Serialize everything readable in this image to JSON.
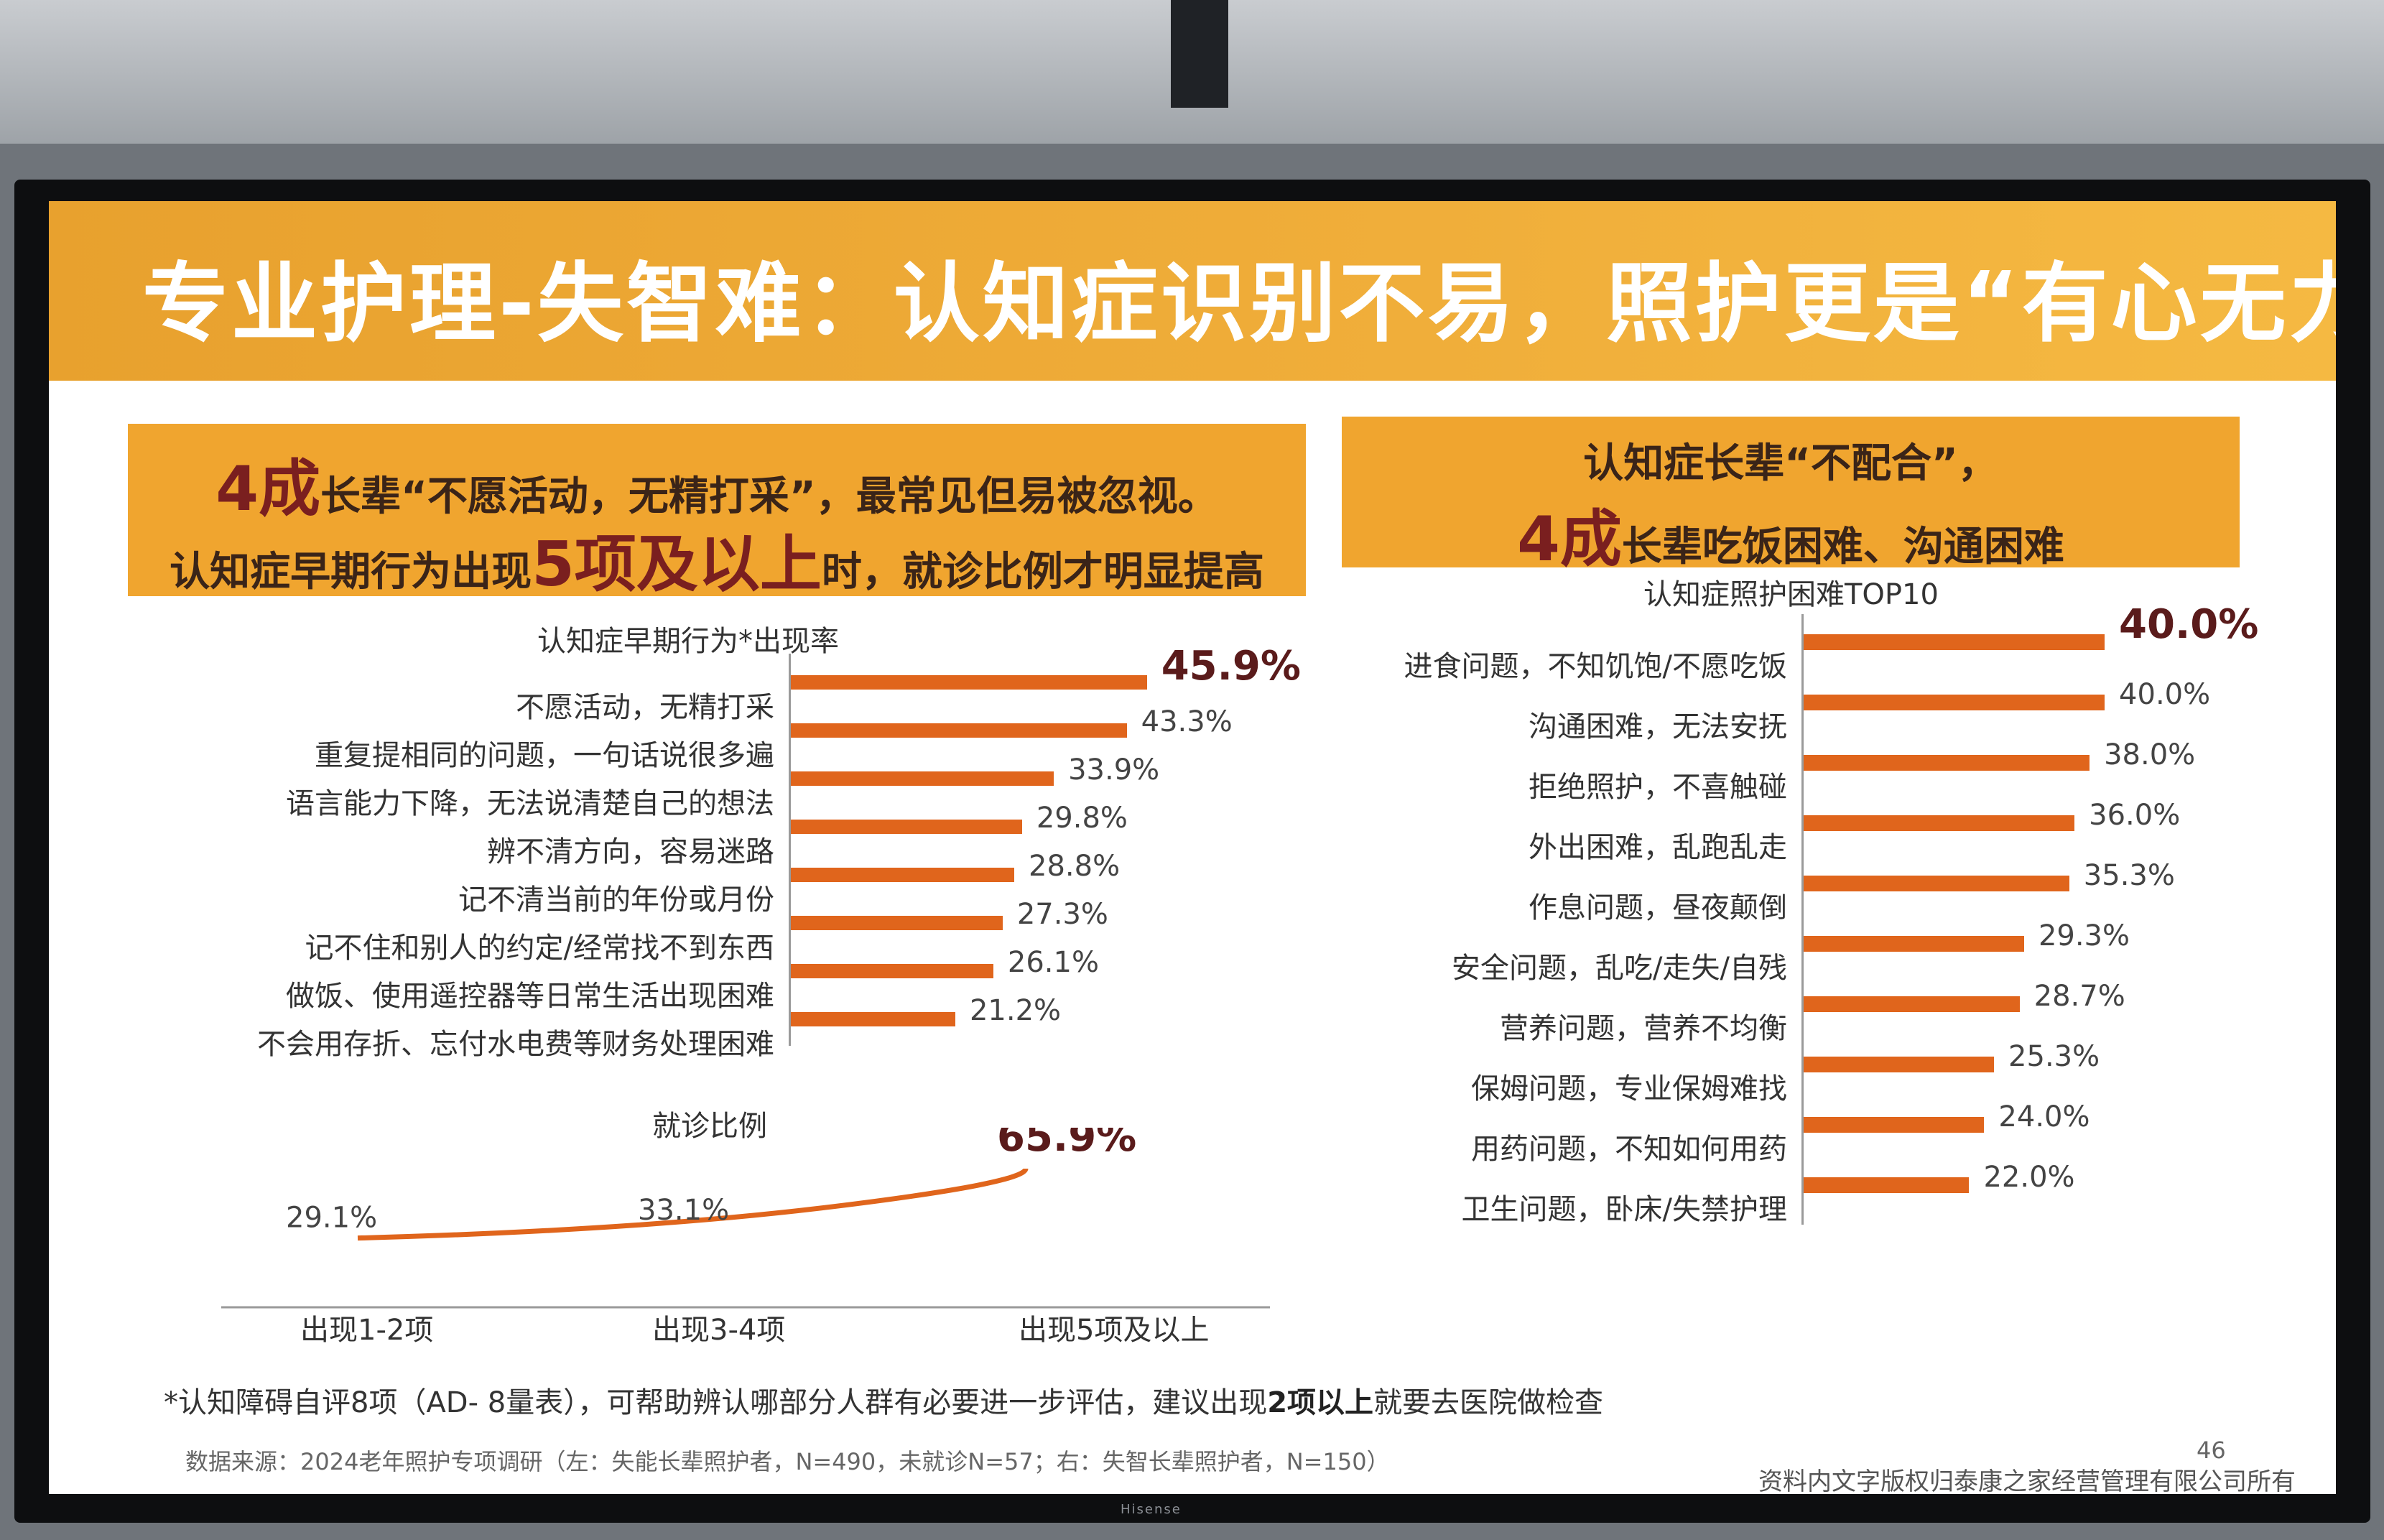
{
  "slide": {
    "title": "专业护理-失智难：认知症识别不易，照护更是“有心无力”",
    "page_number": "46",
    "copyright": "资料内文字版权归泰康之家经营管理有限公司所有",
    "source": "数据来源：2024老年照护专项调研（左：失能长辈照护者，N=490，未就诊N=57；右：失智长辈照护者，N=150）",
    "footnote_prefix": "*认知障碍自评8项（AD- 8量表），可帮助辨认哪部分人群有必要进一步评估，建议出现",
    "footnote_bold": "2项以上",
    "footnote_suffix": "就要去医院做检查",
    "tv_brand": "Hisense"
  },
  "left_banner": {
    "line1_big": "4成",
    "line1_text": "长辈“不愿活动，无精打采”，最常见但易被忽视。",
    "line2_pre": "认知症早期行为出现",
    "line2_big": "5项及以上",
    "line2_post": "时，就诊比例才明显提高"
  },
  "right_banner": {
    "line1": "认知症长辈“不配合”，",
    "line2_big": "4成",
    "line2_text": "长辈吃饭困难、沟通困难"
  },
  "chart_data": [
    {
      "type": "bar",
      "orientation": "horizontal",
      "title": "认知症早期行为*出现率",
      "categories": [
        "不愿活动，无精打采",
        "重复提相同的问题，一句话说很多遍",
        "语言能力下降，无法说清楚自己的想法",
        "辨不清方向，容易迷路",
        "记不清当前的年份或月份",
        "记不住和别人的约定/经常找不到东西",
        "做饭、使用遥控器等日常生活出现困难",
        "不会用存折、忘付水电费等财务处理困难"
      ],
      "values": [
        45.9,
        43.3,
        33.9,
        29.8,
        28.8,
        27.3,
        26.1,
        21.2
      ],
      "value_labels": [
        "45.9%",
        "43.3%",
        "33.9%",
        "29.8%",
        "28.8%",
        "27.3%",
        "26.1%",
        "21.2%"
      ],
      "unit": "%",
      "color": "#e0651c"
    },
    {
      "type": "line",
      "title": "就诊比例",
      "categories": [
        "出现1-2项",
        "出现3-4项",
        "出现5项及以上"
      ],
      "values": [
        29.1,
        33.1,
        65.9
      ],
      "value_labels": [
        "29.1%",
        "33.1%",
        "65.9%"
      ],
      "unit": "%",
      "color": "#e0651c"
    },
    {
      "type": "bar",
      "orientation": "horizontal",
      "title": "认知症照护困难TOP10",
      "categories": [
        "进食问题，不知饥饱/不愿吃饭",
        "沟通困难，无法安抚",
        "拒绝照护，不喜触碰",
        "外出困难，乱跑乱走",
        "作息问题，昼夜颠倒",
        "安全问题，乱吃/走失/自残",
        "营养问题，营养不均衡",
        "保姆问题，专业保姆难找",
        "用药问题，不知如何用药",
        "卫生问题，卧床/失禁护理"
      ],
      "values": [
        40.0,
        40.0,
        38.0,
        36.0,
        35.3,
        29.3,
        28.7,
        25.3,
        24.0,
        22.0
      ],
      "value_labels": [
        "40.0%",
        "40.0%",
        "38.0%",
        "36.0%",
        "35.3%",
        "29.3%",
        "28.7%",
        "25.3%",
        "24.0%",
        "22.0%"
      ],
      "unit": "%",
      "color": "#e0651c"
    }
  ]
}
